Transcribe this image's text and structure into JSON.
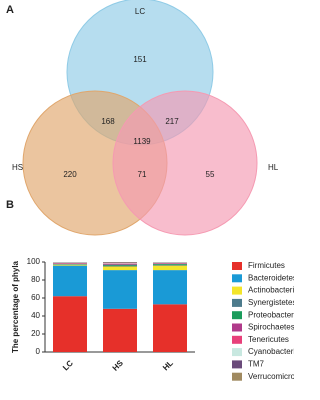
{
  "chart_data": [
    {
      "type": "venn",
      "panel": "A",
      "sets": [
        {
          "name": "LC",
          "color": "#8fcbe6"
        },
        {
          "name": "HS",
          "color": "#e0a66c"
        },
        {
          "name": "HL",
          "color": "#f59ab2"
        }
      ],
      "values": [
        151,
        168,
        217,
        1139,
        220,
        71,
        55
      ]
    },
    {
      "type": "stacked-bar",
      "panel": "B",
      "y_label": "The percentage of phyla",
      "categories": [
        "LC",
        "HS",
        "HL"
      ],
      "ylim": [
        0,
        100
      ],
      "yticks": [
        0,
        20,
        40,
        60,
        80,
        100
      ],
      "series": [
        {
          "name": "Firmicutes",
          "color": "#e6302a",
          "values": [
            62,
            48,
            53
          ]
        },
        {
          "name": "Bacteroidetes",
          "color": "#1a9ad6",
          "values": [
            34,
            43,
            38
          ]
        },
        {
          "name": "Actinobacteria",
          "color": "#f3e52a",
          "values": [
            1,
            4,
            5
          ]
        },
        {
          "name": "Synergistetes",
          "color": "#4d7b8c",
          "values": [
            0.5,
            1,
            1
          ]
        },
        {
          "name": "Proteobacteria",
          "color": "#1b9c5c",
          "values": [
            0.5,
            1,
            1
          ]
        },
        {
          "name": "Spirochaetes",
          "color": "#b03a8a",
          "values": [
            0.5,
            1,
            0.5
          ]
        },
        {
          "name": "Tenericutes",
          "color": "#e8407a",
          "values": [
            0.5,
            0.5,
            0.5
          ]
        },
        {
          "name": "Cyanobacteria",
          "color": "#c8e8e0",
          "values": [
            0.5,
            0.5,
            0.5
          ]
        },
        {
          "name": "TM7",
          "color": "#6a4a7a",
          "values": [
            0.3,
            0.5,
            0.3
          ]
        },
        {
          "name": "Verrucomicrobia",
          "color": "#a08a60",
          "values": [
            0.2,
            0.5,
            0.2
          ]
        }
      ]
    }
  ]
}
